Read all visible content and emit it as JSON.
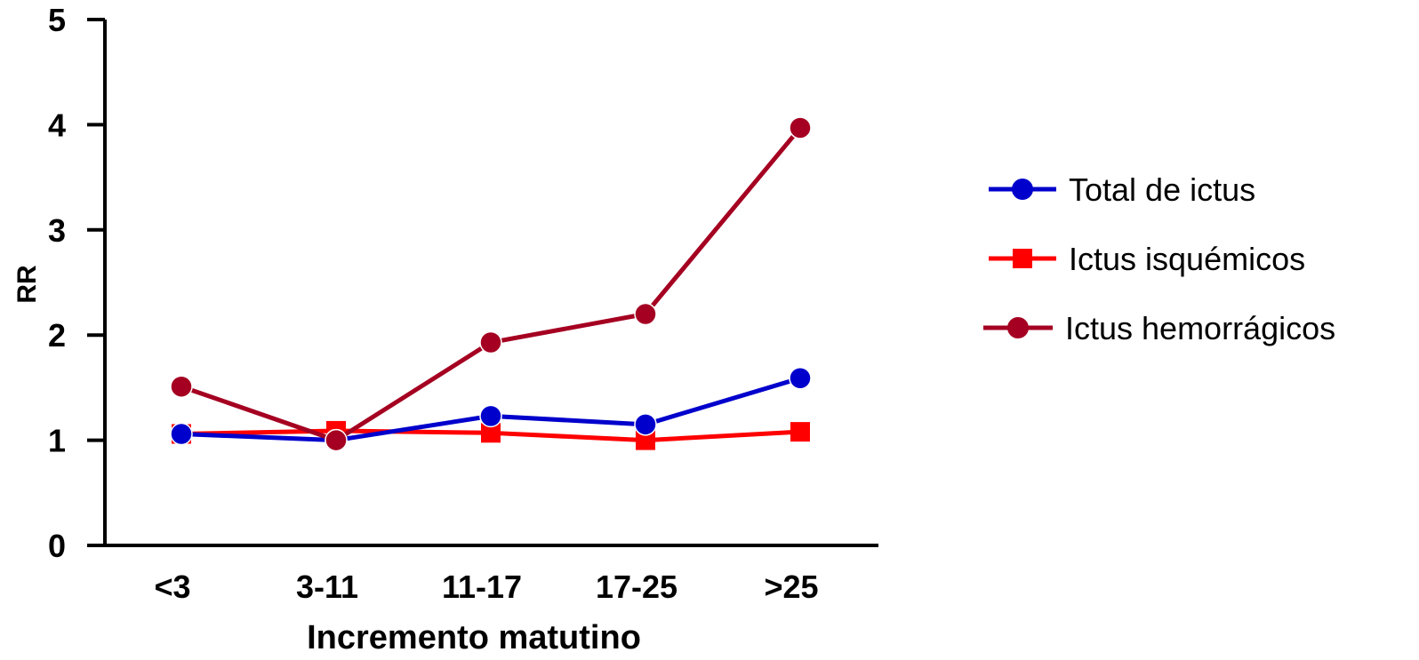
{
  "chart_data": {
    "type": "line",
    "title": "",
    "xlabel": "Incremento matutino",
    "ylabel": "RR",
    "categories": [
      "<3",
      "3-11",
      "11-17",
      "17-25",
      ">25"
    ],
    "ylim": [
      0,
      5
    ],
    "yticks": [
      "0",
      "1",
      "2",
      "3",
      "4",
      "5"
    ],
    "grid": false,
    "legend_position": "right",
    "series": [
      {
        "name": "Total de ictus",
        "color": "#0000cc",
        "marker": "circle",
        "values": [
          1.06,
          1.0,
          1.23,
          1.15,
          1.59
        ]
      },
      {
        "name": "Ictus isquémicos",
        "color": "#ff0000",
        "marker": "square",
        "values": [
          1.06,
          1.09,
          1.07,
          1.0,
          1.08
        ]
      },
      {
        "name": "Ictus hemorrágicos",
        "color": "#a50021",
        "marker": "circle",
        "values": [
          1.51,
          1.0,
          1.93,
          2.2,
          3.97
        ]
      }
    ]
  }
}
